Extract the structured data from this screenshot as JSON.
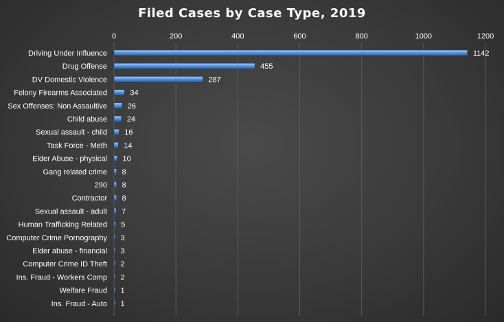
{
  "chart_data": {
    "type": "bar",
    "orientation": "horizontal",
    "title": "Filed Cases by Case Type, 2019",
    "xlim": [
      0,
      1200
    ],
    "ticks": [
      0,
      200,
      400,
      600,
      800,
      1000,
      1200
    ],
    "axis_position": "top",
    "grid": true,
    "legend": "none",
    "bar_color": "#4a86d6",
    "categories": [
      "Driving Under Influence",
      "Drug Offense",
      "DV Domestic Violence",
      "Felony Firearms Associated",
      "Sex Offenses: Non Assaultive",
      "Child abuse",
      "Sexual assault - child",
      "Task Force - Meth",
      "Elder Abuse - physical",
      "Gang related crime",
      "290",
      "Contractor",
      "Sexual assault - adult",
      "Human Trafficking Related",
      "Computer Crime Pornography",
      "Elder abuse - financial",
      "Computer Crime ID Theft",
      "Ins. Fraud - Workers Comp",
      "Welfare Fraud",
      "Ins. Fraud - Auto"
    ],
    "values": [
      1142,
      455,
      287,
      34,
      26,
      24,
      16,
      14,
      10,
      8,
      8,
      8,
      7,
      5,
      3,
      3,
      2,
      2,
      1,
      1
    ]
  }
}
